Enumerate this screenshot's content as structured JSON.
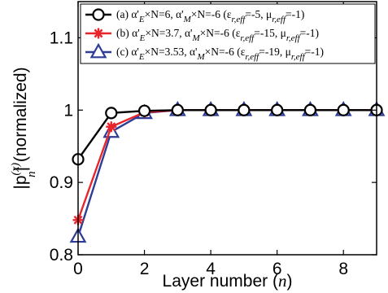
{
  "chart_data": {
    "type": "line",
    "xlabel_text": "Layer number (",
    "xlabel_var": "n",
    "xlabel_close": ")",
    "ylabel_prefix": "|p",
    "ylabel_sup": "(x)",
    "ylabel_sub": "n",
    "ylabel_suffix": "| (normalized)",
    "xlim": [
      0,
      9
    ],
    "ylim": [
      0.8,
      1.15
    ],
    "xticks": [
      0,
      2,
      4,
      6,
      8
    ],
    "xtick_labels": [
      "0",
      "2",
      "4",
      "6",
      "8"
    ],
    "yticks": [
      0.8,
      0.9,
      1.0,
      1.1
    ],
    "ytick_labels": [
      "0.8",
      "0.9",
      "1",
      "1.1"
    ],
    "grid": false,
    "legend_position": "top",
    "series": [
      {
        "legend_parts": [
          [
            "(a) α'",
            ""
          ],
          [
            "E",
            "sub"
          ],
          [
            "×N=6, α'",
            ""
          ],
          [
            "M",
            "sub"
          ],
          [
            "×N=-6 (ε",
            ""
          ],
          [
            "r,eff",
            "sub"
          ],
          [
            "=-5, μ",
            ""
          ],
          [
            "r,eff",
            "sub"
          ],
          [
            "=-1)",
            ""
          ]
        ],
        "color": "#000000",
        "marker": "circle",
        "x": [
          0,
          1,
          2,
          3,
          4,
          5,
          6,
          7,
          8,
          9
        ],
        "values": [
          0.932,
          0.996,
          0.999,
          1.0,
          1.0,
          1.0,
          1.0,
          1.0,
          1.0,
          1.0
        ]
      },
      {
        "legend_parts": [
          [
            "(b) α'",
            ""
          ],
          [
            "E",
            "sub"
          ],
          [
            "×N=3.7, α'",
            ""
          ],
          [
            "M",
            "sub"
          ],
          [
            "×N=-6 (ε",
            ""
          ],
          [
            "r,eff",
            "sub"
          ],
          [
            "=-15, μ",
            ""
          ],
          [
            "r,eff",
            "sub"
          ],
          [
            "=-1)",
            ""
          ]
        ],
        "color": "#e8252a",
        "marker": "star",
        "x": [
          0,
          1,
          2,
          3,
          4,
          5,
          6,
          7,
          8,
          9
        ],
        "values": [
          0.848,
          0.977,
          0.997,
          1.0,
          1.0,
          1.0,
          1.0,
          1.0,
          1.0,
          1.0
        ]
      },
      {
        "legend_parts": [
          [
            "(c) α'",
            ""
          ],
          [
            "E",
            "sub"
          ],
          [
            "×N=3.53, α'",
            ""
          ],
          [
            "M",
            "sub"
          ],
          [
            "×N=-6 (ε",
            ""
          ],
          [
            "r,eff",
            "sub"
          ],
          [
            "=-19, μ",
            ""
          ],
          [
            "r,eff",
            "sub"
          ],
          [
            "=-1)",
            ""
          ]
        ],
        "color": "#2e3d96",
        "marker": "triangle",
        "x": [
          0,
          1,
          2,
          3,
          4,
          5,
          6,
          7,
          8,
          9
        ],
        "values": [
          0.825,
          0.97,
          0.996,
          1.0,
          1.0,
          1.0,
          1.0,
          1.0,
          1.0,
          1.0
        ]
      }
    ]
  }
}
